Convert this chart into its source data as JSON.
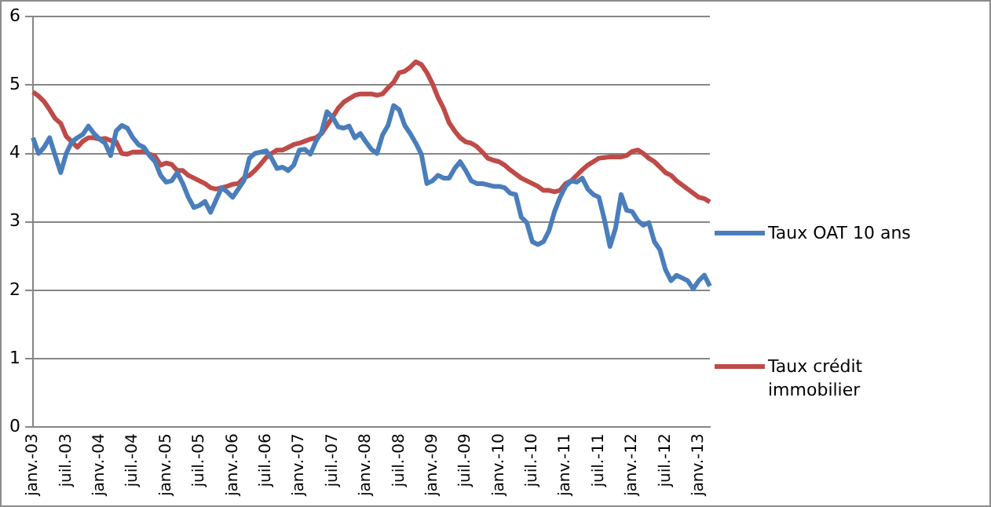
{
  "chart_data": {
    "type": "line",
    "categories": [
      "janv.-03",
      null,
      null,
      null,
      null,
      null,
      "juil.-03",
      null,
      null,
      null,
      null,
      null,
      "janv.-04",
      null,
      null,
      null,
      null,
      null,
      "juil.-04",
      null,
      null,
      null,
      null,
      null,
      "janv.-05",
      null,
      null,
      null,
      null,
      null,
      "juil.-05",
      null,
      null,
      null,
      null,
      null,
      "janv.-06",
      null,
      null,
      null,
      null,
      null,
      "juil.-06",
      null,
      null,
      null,
      null,
      null,
      "janv.-07",
      null,
      null,
      null,
      null,
      null,
      "juil.-07",
      null,
      null,
      null,
      null,
      null,
      "janv.-08",
      null,
      null,
      null,
      null,
      null,
      "juil.-08",
      null,
      null,
      null,
      null,
      null,
      "janv.-09",
      null,
      null,
      null,
      null,
      null,
      "juil.-09",
      null,
      null,
      null,
      null,
      null,
      "janv.-10",
      null,
      null,
      null,
      null,
      null,
      "juil.-10",
      null,
      null,
      null,
      null,
      null,
      "janv.-11",
      null,
      null,
      null,
      null,
      null,
      "juil.-11",
      null,
      null,
      null,
      null,
      null,
      "janv.-12",
      null,
      null,
      null,
      null,
      null,
      "juil.-12",
      null,
      null,
      null,
      null,
      null,
      "janv.-13",
      null,
      null
    ],
    "series": [
      {
        "name": "Taux OAT 10 ans",
        "color": "#4a7ebb",
        "values": [
          4.23,
          4.0,
          4.09,
          4.23,
          3.97,
          3.72,
          4.0,
          4.17,
          4.23,
          4.28,
          4.4,
          4.29,
          4.21,
          4.15,
          3.97,
          4.33,
          4.41,
          4.37,
          4.23,
          4.13,
          4.09,
          3.97,
          3.88,
          3.68,
          3.58,
          3.6,
          3.72,
          3.56,
          3.36,
          3.21,
          3.24,
          3.3,
          3.14,
          3.32,
          3.5,
          3.44,
          3.36,
          3.48,
          3.6,
          3.93,
          4.0,
          4.02,
          4.04,
          3.93,
          3.78,
          3.8,
          3.75,
          3.83,
          4.05,
          4.06,
          3.99,
          4.18,
          4.31,
          4.61,
          4.53,
          4.39,
          4.37,
          4.4,
          4.23,
          4.29,
          4.17,
          4.06,
          4.0,
          4.27,
          4.41,
          4.7,
          4.64,
          4.41,
          4.29,
          4.15,
          3.99,
          3.56,
          3.6,
          3.68,
          3.64,
          3.64,
          3.78,
          3.88,
          3.75,
          3.6,
          3.56,
          3.56,
          3.54,
          3.52,
          3.52,
          3.5,
          3.42,
          3.4,
          3.07,
          2.99,
          2.71,
          2.67,
          2.71,
          2.87,
          3.15,
          3.36,
          3.52,
          3.6,
          3.58,
          3.64,
          3.48,
          3.4,
          3.36,
          3.03,
          2.64,
          2.91,
          3.4,
          3.17,
          3.15,
          3.02,
          2.95,
          2.99,
          2.71,
          2.59,
          2.3,
          2.14,
          2.22,
          2.18,
          2.14,
          2.02,
          2.14,
          2.22,
          2.06
        ]
      },
      {
        "name": "Taux crédit immobilier",
        "color": "#be4b48",
        "values": [
          4.9,
          4.84,
          4.76,
          4.64,
          4.51,
          4.44,
          4.25,
          4.17,
          4.09,
          4.18,
          4.23,
          4.23,
          4.21,
          4.22,
          4.19,
          4.17,
          4.0,
          3.99,
          4.02,
          4.02,
          4.03,
          3.99,
          3.96,
          3.83,
          3.86,
          3.84,
          3.75,
          3.75,
          3.68,
          3.64,
          3.6,
          3.56,
          3.5,
          3.48,
          3.5,
          3.52,
          3.55,
          3.56,
          3.64,
          3.68,
          3.75,
          3.84,
          3.94,
          4.0,
          4.05,
          4.05,
          4.09,
          4.13,
          4.15,
          4.18,
          4.21,
          4.23,
          4.29,
          4.41,
          4.53,
          4.66,
          4.75,
          4.8,
          4.85,
          4.87,
          4.87,
          4.87,
          4.85,
          4.87,
          4.96,
          5.04,
          5.18,
          5.2,
          5.26,
          5.34,
          5.3,
          5.18,
          5.02,
          4.82,
          4.66,
          4.45,
          4.33,
          4.23,
          4.17,
          4.15,
          4.1,
          4.02,
          3.93,
          3.9,
          3.88,
          3.83,
          3.76,
          3.7,
          3.64,
          3.6,
          3.56,
          3.52,
          3.46,
          3.46,
          3.44,
          3.46,
          3.56,
          3.6,
          3.68,
          3.76,
          3.83,
          3.88,
          3.93,
          3.94,
          3.95,
          3.95,
          3.95,
          3.97,
          4.03,
          4.05,
          4.0,
          3.93,
          3.88,
          3.8,
          3.72,
          3.68,
          3.6,
          3.54,
          3.48,
          3.42,
          3.36,
          3.34,
          3.29
        ]
      }
    ],
    "ylim": [
      0,
      6
    ],
    "yticks": [
      0,
      1,
      2,
      3,
      4,
      5,
      6
    ],
    "grid": "y",
    "legend": "right",
    "marker": "none",
    "line_style": "solid"
  }
}
